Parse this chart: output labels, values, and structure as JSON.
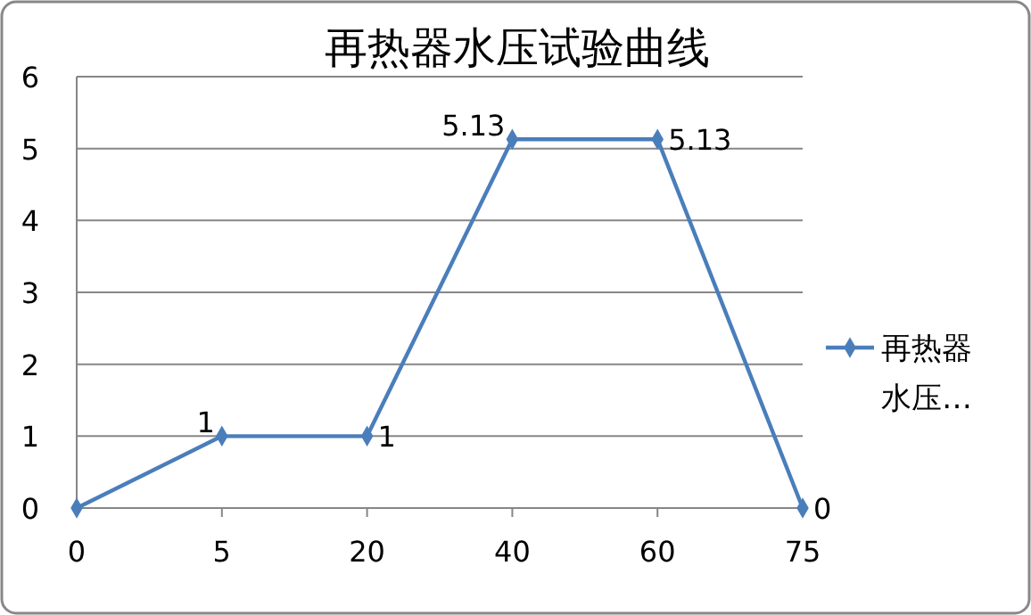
{
  "chart_data": {
    "type": "line",
    "title": "再热器水压试验曲线",
    "categories": [
      "0",
      "5",
      "20",
      "40",
      "60",
      "75"
    ],
    "series": [
      {
        "name": "再热器水压…",
        "color": "#4a7ebb",
        "values": [
          0,
          1,
          1,
          5.13,
          5.13,
          0
        ],
        "value_labels": [
          null,
          "1",
          "1",
          "5.13",
          "5.13",
          "0"
        ]
      }
    ],
    "ylim": [
      0,
      6
    ],
    "yticks": [
      0,
      1,
      2,
      3,
      4,
      5,
      6
    ],
    "grid": "y",
    "legend": "right",
    "marker": "diamond",
    "line_style": "solid"
  }
}
